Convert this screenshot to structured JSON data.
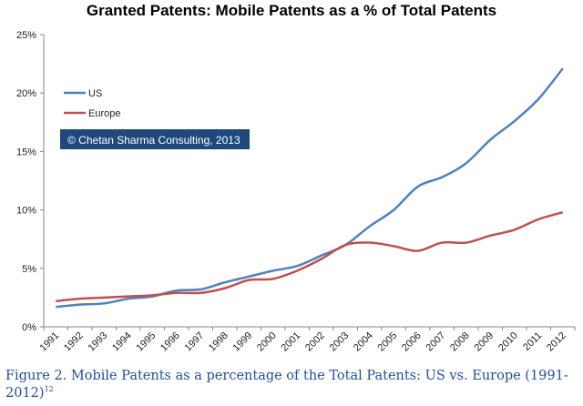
{
  "chart_data": {
    "type": "line",
    "title": "Granted Patents: Mobile Patents as a % of Total Patents",
    "xlabel": "",
    "ylabel": "",
    "x": [
      "1991",
      "1992",
      "1993",
      "1994",
      "1995",
      "1996",
      "1997",
      "1998",
      "1999",
      "2000",
      "2001",
      "2002",
      "2003",
      "2004",
      "2005",
      "2006",
      "2007",
      "2008",
      "2009",
      "2010",
      "2011",
      "2012"
    ],
    "ylim": [
      0,
      25
    ],
    "yticks": [
      0,
      5,
      10,
      15,
      20,
      25
    ],
    "ytick_labels": [
      "0%",
      "5%",
      "10%",
      "15%",
      "20%",
      "25%"
    ],
    "grid": false,
    "legend_position": "top-left",
    "series": [
      {
        "name": "US",
        "color": "#4f81bd",
        "values": [
          1.7,
          1.9,
          2.0,
          2.4,
          2.6,
          3.1,
          3.2,
          3.8,
          4.3,
          4.8,
          5.2,
          6.1,
          7.0,
          8.6,
          10.0,
          12.0,
          12.8,
          14.0,
          16.0,
          17.6,
          19.5,
          22.1
        ]
      },
      {
        "name": "Europe",
        "color": "#c0504d",
        "values": [
          2.2,
          2.4,
          2.5,
          2.6,
          2.7,
          2.9,
          2.9,
          3.3,
          4.0,
          4.1,
          4.8,
          5.8,
          7.0,
          7.2,
          6.9,
          6.5,
          7.2,
          7.2,
          7.8,
          8.3,
          9.2,
          9.8
        ]
      }
    ],
    "annotation": "© Chetan Sharma Consulting, 2013"
  },
  "caption": {
    "text": "Figure 2. Mobile Patents as a percentage of the Total Patents: US vs. Europe (1991-2012)",
    "footnote": "12"
  }
}
